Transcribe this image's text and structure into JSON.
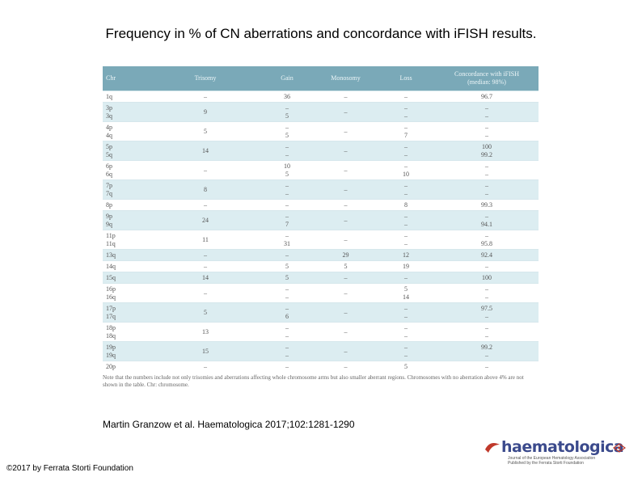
{
  "title": "Frequency in % of CN aberrations and concordance with iFISH results.",
  "table": {
    "headers": {
      "chr": "Chr",
      "trisomy": "Trisomy",
      "gain": "Gain",
      "monosomy": "Monosomy",
      "loss": "Loss",
      "concordance_line1": "Concordance with iFISH",
      "concordance_line2": "(median: 98%)"
    },
    "rows": [
      {
        "chr": [
          "1q"
        ],
        "trisomy": "–",
        "gain": [
          "36"
        ],
        "monosomy": "–",
        "loss": [
          "–"
        ],
        "concordance": [
          "96.7"
        ],
        "shade": false
      },
      {
        "chr": [
          "3p",
          "3q"
        ],
        "trisomy": "9",
        "gain": [
          "–",
          "5"
        ],
        "monosomy": "–",
        "loss": [
          "–",
          "–"
        ],
        "concordance": [
          "–",
          "–"
        ],
        "shade": true
      },
      {
        "chr": [
          "4p",
          "4q"
        ],
        "trisomy": "5",
        "gain": [
          "–",
          "5"
        ],
        "monosomy": "–",
        "loss": [
          "–",
          "7"
        ],
        "concordance": [
          "–",
          "–"
        ],
        "shade": false
      },
      {
        "chr": [
          "5p",
          "5q"
        ],
        "trisomy": "14",
        "gain": [
          "–",
          "–"
        ],
        "monosomy": "–",
        "loss": [
          "–",
          "–"
        ],
        "concordance": [
          "100",
          "99.2"
        ],
        "shade": true
      },
      {
        "chr": [
          "6p",
          "6q"
        ],
        "trisomy": "–",
        "gain": [
          "10",
          "5"
        ],
        "monosomy": "–",
        "loss": [
          "–",
          "10"
        ],
        "concordance": [
          "–",
          "–"
        ],
        "shade": false
      },
      {
        "chr": [
          "7p",
          "7q"
        ],
        "trisomy": "8",
        "gain": [
          "–",
          "–"
        ],
        "monosomy": "–",
        "loss": [
          "–",
          "–"
        ],
        "concordance": [
          "–",
          "–"
        ],
        "shade": true
      },
      {
        "chr": [
          "8p"
        ],
        "trisomy": "–",
        "gain": [
          "–"
        ],
        "monosomy": "–",
        "loss": [
          "8"
        ],
        "concordance": [
          "99.3"
        ],
        "shade": false
      },
      {
        "chr": [
          "9p",
          "9q"
        ],
        "trisomy": "24",
        "gain": [
          "–",
          "7"
        ],
        "monosomy": "–",
        "loss": [
          "–",
          "–"
        ],
        "concordance": [
          "–",
          "94.1"
        ],
        "shade": true
      },
      {
        "chr": [
          "11p",
          "11q"
        ],
        "trisomy": "11",
        "gain": [
          "–",
          "31"
        ],
        "monosomy": "–",
        "loss": [
          "–",
          "–"
        ],
        "concordance": [
          "–",
          "95.8"
        ],
        "shade": false
      },
      {
        "chr": [
          "13q"
        ],
        "trisomy": "–",
        "gain": [
          "–"
        ],
        "monosomy": "29",
        "loss": [
          "12"
        ],
        "concordance": [
          "92.4"
        ],
        "shade": true
      },
      {
        "chr": [
          "14q"
        ],
        "trisomy": "–",
        "gain": [
          "5"
        ],
        "monosomy": "5",
        "loss": [
          "19"
        ],
        "concordance": [
          "–"
        ],
        "shade": false
      },
      {
        "chr": [
          "15q"
        ],
        "trisomy": "14",
        "gain": [
          "5"
        ],
        "monosomy": "–",
        "loss": [
          "–"
        ],
        "concordance": [
          "100"
        ],
        "shade": true
      },
      {
        "chr": [
          "16p",
          "16q"
        ],
        "trisomy": "–",
        "gain": [
          "–",
          "–"
        ],
        "monosomy": "–",
        "loss": [
          "5",
          "14"
        ],
        "concordance": [
          "–",
          "–"
        ],
        "shade": false
      },
      {
        "chr": [
          "17p",
          "17q"
        ],
        "trisomy": "5",
        "gain": [
          "–",
          "6"
        ],
        "monosomy": "–",
        "loss": [
          "–",
          "–"
        ],
        "concordance": [
          "97.5",
          "–"
        ],
        "shade": true
      },
      {
        "chr": [
          "18p",
          "18q"
        ],
        "trisomy": "13",
        "gain": [
          "–",
          "–"
        ],
        "monosomy": "–",
        "loss": [
          "–",
          "–"
        ],
        "concordance": [
          "–",
          "–"
        ],
        "shade": false
      },
      {
        "chr": [
          "19p",
          "19q"
        ],
        "trisomy": "15",
        "gain": [
          "–",
          "–"
        ],
        "monosomy": "–",
        "loss": [
          "–",
          "–"
        ],
        "concordance": [
          "99.2",
          "–"
        ],
        "shade": true
      },
      {
        "chr": [
          "20p"
        ],
        "trisomy": "–",
        "gain": [
          "–"
        ],
        "monosomy": "–",
        "loss": [
          "5"
        ],
        "concordance": [
          "–"
        ],
        "shade": false
      }
    ],
    "note": "Note that the numbers include not only trisomies and aberrations affecting whole chromosome arms but also smaller aberrant regions. Chromosomes with no aberration above 4% are not shown in the table. Chr: chromosome."
  },
  "citation": "Martin Granzow et al. Haematologica 2017;102:1281-1290",
  "copyright": "©2017 by Ferrata Storti Foundation",
  "logo": {
    "name": "haematologica",
    "subtitle_line1": "Journal of the European Hematology Association",
    "subtitle_line2": "Published by the Ferrata Storti Foundation"
  },
  "colors": {
    "header_bg": "#7aa9b8",
    "row_shade": "#dcedf1",
    "logo_blue": "#3b4a8c",
    "logo_red": "#c0392b"
  }
}
